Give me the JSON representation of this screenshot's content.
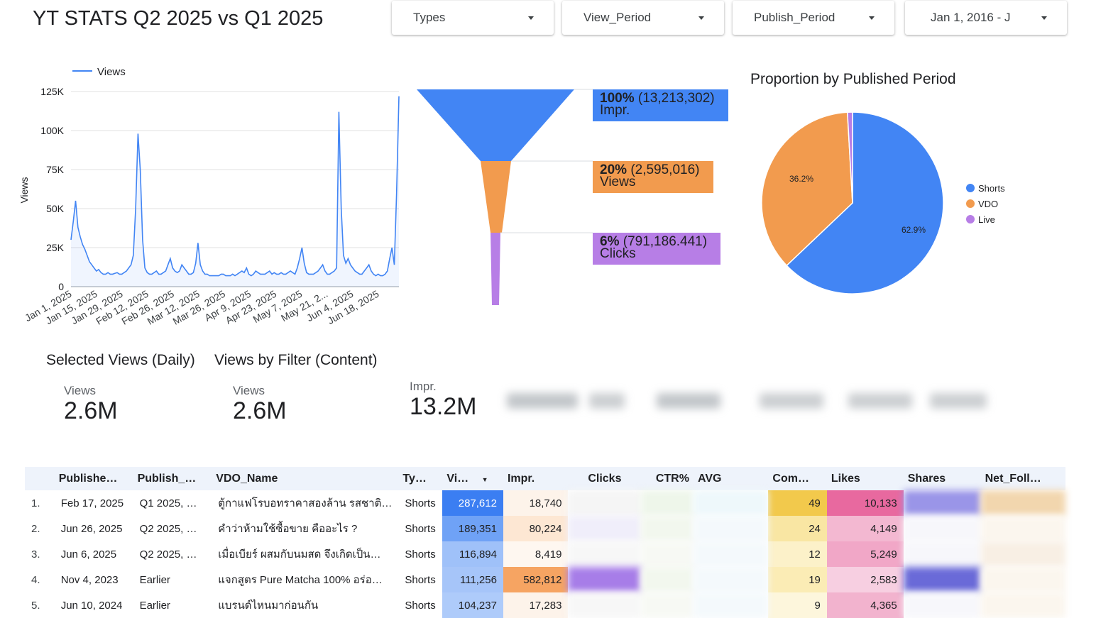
{
  "title": "YT STATS Q2 2025 vs Q1 2025",
  "filters": [
    {
      "label": "Types"
    },
    {
      "label": "View_Period"
    },
    {
      "label": "Publish_Period"
    },
    {
      "label": "Jan 1, 2016 - J"
    }
  ],
  "line_chart": {
    "legend_label": "Views",
    "ylabel": "Views",
    "y_ticks": [
      "125K",
      "100K",
      "75K",
      "50K",
      "25K",
      "0"
    ],
    "x_ticks": [
      "Jan 1, 2025",
      "Jan 15, 2025",
      "Jan 29, 2025",
      "Feb 12, 2025",
      "Feb 26, 2025",
      "Mar 12, 2025",
      "Mar 26, 2025",
      "Apr 9, 2025",
      "Apr 23, 2025",
      "May 7, 2025",
      "May 21, 2...",
      "Jun 4, 2025",
      "Jun 18, 2025"
    ]
  },
  "funnel": [
    {
      "pct": "100%",
      "value": "(13,213,302)",
      "label": "Impr."
    },
    {
      "pct": "20%",
      "value": "(2,595,016)",
      "label": "Views"
    },
    {
      "pct": "6%",
      "value": "(791,186.441)",
      "label": "Clicks"
    }
  ],
  "pie": {
    "title": "Proportion by Published Period",
    "labels": [
      "62.9%",
      "36.2%"
    ],
    "legend": [
      "Shorts",
      "VDO",
      "Live"
    ]
  },
  "scorecards": {
    "selected_views_title": "Selected Views (Daily)",
    "views_filter_title": "Views by Filter (Content)",
    "card1": {
      "label": "Views",
      "value": "2.6M"
    },
    "card2": {
      "label": "Views",
      "value": "2.6M"
    },
    "card3": {
      "label": "Impr.",
      "value": "13.2M"
    }
  },
  "table": {
    "headers": [
      "Publishe…",
      "Publish_…",
      "VDO_Name",
      "Ty…",
      "Vi…",
      "Impr.",
      "Clicks",
      "CTR%",
      "AVG",
      "Com…",
      "Likes",
      "Shares",
      "Net_Foll…"
    ],
    "rows": [
      {
        "idx": "1.",
        "published": "Feb 17, 2025",
        "period": "Q1 2025, …",
        "name": "ตู้กาแฟโรบอทราคาสองล้าน รสชาติ…",
        "type": "Shorts",
        "views": "287,612",
        "impr": "18,740",
        "com": "49",
        "likes": "10,133"
      },
      {
        "idx": "2.",
        "published": "Jun 26, 2025",
        "period": "Q2 2025, …",
        "name": "คำว่าห้ามใช้ซื้อขาย คืออะไร ?",
        "type": "Shorts",
        "views": "189,351",
        "impr": "80,224",
        "com": "24",
        "likes": "4,149"
      },
      {
        "idx": "3.",
        "published": "Jun 6, 2025",
        "period": "Q2 2025, …",
        "name": "เมื่อเบียร์ ผสมกับนมสด จึงเกิดเป็น…",
        "type": "Shorts",
        "views": "116,894",
        "impr": "8,419",
        "com": "12",
        "likes": "5,249"
      },
      {
        "idx": "4.",
        "published": "Nov 4, 2023",
        "period": "Earlier",
        "name": "แจกสูตร Pure Matcha 100% อร่อ…",
        "type": "Shorts",
        "views": "111,256",
        "impr": "582,812",
        "com": "19",
        "likes": "2,583"
      },
      {
        "idx": "5.",
        "published": "Jun 10, 2024",
        "period": "Earlier",
        "name": "แบรนด์ไหนมาก่อนกัน",
        "type": "Shorts",
        "views": "104,237",
        "impr": "17,283",
        "com": "9",
        "likes": "4,365"
      }
    ]
  },
  "chart_data": [
    {
      "type": "line",
      "xlabel": "",
      "ylabel": "Views",
      "ylim": [
        0,
        125000
      ],
      "x_start": "Jan 1, 2025",
      "x_end": "Jun 30, 2025",
      "series": [
        {
          "name": "Views",
          "color": "#4285f4",
          "values": [
            30000,
            42000,
            55000,
            38000,
            32000,
            27000,
            24000,
            20000,
            16000,
            14000,
            12000,
            10000,
            11000,
            9000,
            8000,
            8000,
            9000,
            8000,
            8000,
            8500,
            9000,
            8000,
            8000,
            9000,
            10000,
            12000,
            14000,
            20000,
            50000,
            98000,
            75000,
            30000,
            12000,
            9000,
            8000,
            8000,
            9000,
            10000,
            8000,
            8000,
            9000,
            10000,
            14000,
            18000,
            12000,
            10000,
            9000,
            10000,
            14000,
            12000,
            10000,
            8000,
            8000,
            9000,
            15000,
            28000,
            14000,
            10000,
            8000,
            8000,
            7000,
            7000,
            7000,
            7000,
            7000,
            8000,
            8000,
            7000,
            7000,
            7000,
            8000,
            7000,
            8000,
            9000,
            10000,
            9000,
            12000,
            8000,
            7000,
            8000,
            10000,
            9000,
            8000,
            8000,
            8000,
            9000,
            10000,
            8000,
            9000,
            8000,
            8000,
            9000,
            8000,
            8000,
            9000,
            10000,
            9000,
            8000,
            12000,
            18000,
            25000,
            15000,
            9000,
            8000,
            8000,
            8000,
            9000,
            10000,
            12000,
            14000,
            10000,
            8000,
            8000,
            9000,
            10000,
            12000,
            112000,
            50000,
            20000,
            15000,
            18000,
            14000,
            12000,
            10000,
            9000,
            8000,
            8000,
            10000,
            12000,
            14000,
            10000,
            8000,
            7000,
            8000,
            7000,
            7000,
            8000,
            10000,
            18000,
            25000,
            14000,
            60000,
            122000
          ]
        }
      ]
    },
    {
      "type": "funnel",
      "categories": [
        "Impr.",
        "Views",
        "Clicks"
      ],
      "values": [
        13213302,
        2595016,
        791186.441
      ],
      "percent": [
        100,
        20,
        6
      ],
      "colors": [
        "#4285f4",
        "#f29b4e",
        "#b77ee6"
      ]
    },
    {
      "type": "pie",
      "title": "Proportion by Published Period",
      "categories": [
        "Shorts",
        "VDO",
        "Live"
      ],
      "values": [
        62.9,
        36.2,
        0.9
      ],
      "colors": [
        "#4285f4",
        "#f29b4e",
        "#b77ee6"
      ]
    }
  ]
}
